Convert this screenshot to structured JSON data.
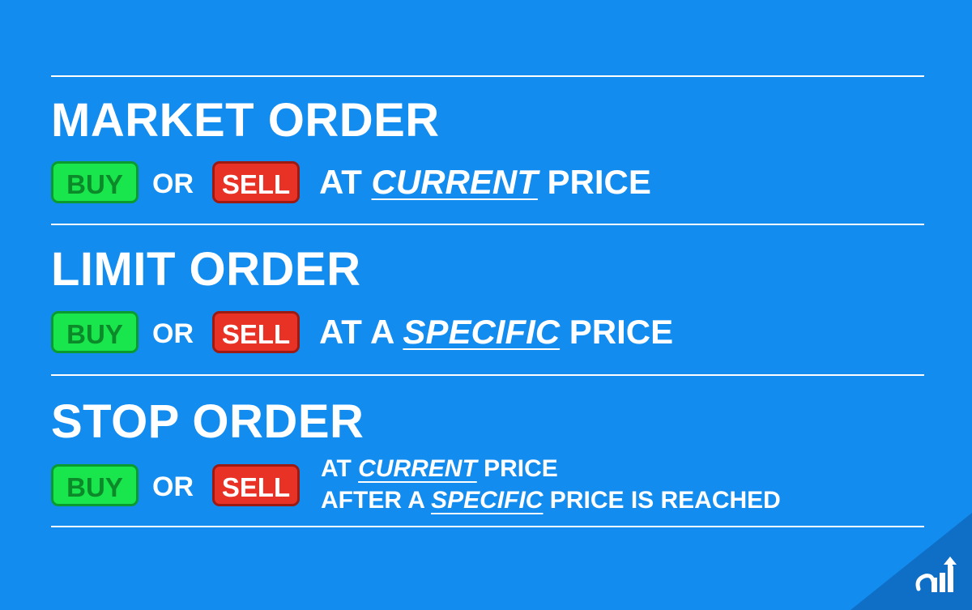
{
  "sections": [
    {
      "title": "MARKET ORDER",
      "buy": "BUY",
      "or": "OR",
      "sell": "SELL",
      "line1": {
        "pre": "AT ",
        "emph": "CURRENT",
        "post": " PRICE"
      }
    },
    {
      "title": "LIMIT ORDER",
      "buy": "BUY",
      "or": "OR",
      "sell": "SELL",
      "line1": {
        "pre": "AT A ",
        "emph": "SPECIFIC",
        "post": " PRICE"
      }
    },
    {
      "title": "STOP ORDER",
      "buy": "BUY",
      "or": "OR",
      "sell": "SELL",
      "line1": {
        "pre": "AT ",
        "emph": "CURRENT",
        "post": " PRICE"
      },
      "line2": {
        "pre": "AFTER A ",
        "emph": "SPECIFIC",
        "post": " PRICE IS REACHED"
      }
    }
  ],
  "colors": {
    "background": "#138cf0",
    "buy": "#19e64c",
    "sell": "#e83226",
    "text": "#ffffff"
  },
  "logo_icon": "bar-chart-arrow-logo-icon"
}
